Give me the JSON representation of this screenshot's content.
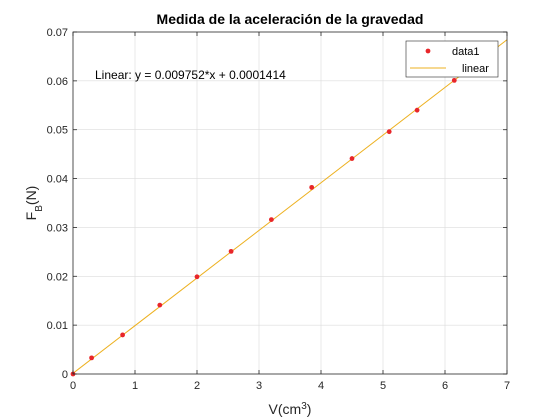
{
  "chart_data": {
    "type": "scatter",
    "title": "Medida de la aceleración de la gravedad",
    "xlabel": {
      "main": "V(cm",
      "sup": "3",
      "close": ")"
    },
    "ylabel": {
      "main": "F",
      "sub": "B",
      "rest": "(N)"
    },
    "xlim": [
      0,
      7
    ],
    "ylim": [
      0,
      0.07
    ],
    "xticks": [
      0,
      1,
      2,
      3,
      4,
      5,
      6,
      7
    ],
    "xtick_labels": [
      "0",
      "1",
      "2",
      "3",
      "4",
      "5",
      "6",
      "7"
    ],
    "yticks": [
      0,
      0.01,
      0.02,
      0.03,
      0.04,
      0.05,
      0.06,
      0.07
    ],
    "ytick_labels": [
      "0",
      "0.01",
      "0.02",
      "0.03",
      "0.04",
      "0.05",
      "0.06",
      "0.07"
    ],
    "grid": true,
    "legend_position": "top-right",
    "series": [
      {
        "name": "data1",
        "kind": "points",
        "color": "#e8262a",
        "x": [
          0,
          0.3,
          0.8,
          1.4,
          2.0,
          2.55,
          3.2,
          3.85,
          4.5,
          5.1,
          5.55,
          6.15
        ],
        "y": [
          0,
          0.0033,
          0.008,
          0.0141,
          0.0199,
          0.0251,
          0.0316,
          0.0382,
          0.0441,
          0.0496,
          0.054,
          0.0601
        ]
      },
      {
        "name": "linear",
        "kind": "fit-line",
        "color": "#edb120",
        "slope": 0.009752,
        "intercept": 0.0001414
      }
    ],
    "annotation": "Linear:  y = 0.009752*x + 0.0001414"
  }
}
